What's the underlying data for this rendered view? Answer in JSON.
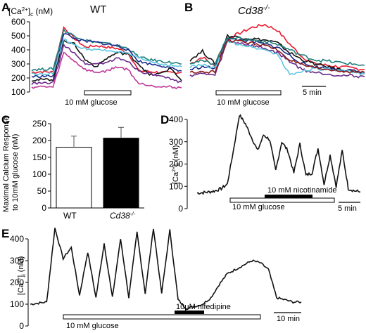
{
  "panels": {
    "A": {
      "letter": "A",
      "title": "WT",
      "ylabel": "[Ca2+]c (nM)",
      "ylabel_html": [
        "[Ca",
        "2+",
        "]",
        "c",
        " (nM)"
      ],
      "bar_label": "10 mM glucose"
    },
    "B": {
      "letter": "B",
      "title": "Cd38-/-",
      "title_parts": [
        "Cd38",
        "-/-"
      ],
      "bar_label": "10 mM glucose",
      "scalebar_label": "5 min"
    },
    "C": {
      "letter": "C",
      "ylabel_lines": [
        "Maximal Calcium Response",
        "to 10mM glucose (nM)"
      ],
      "x_labels": [
        "WT",
        "Cd38-/-"
      ]
    },
    "D": {
      "letter": "D",
      "ylabel": "[Ca2+]i (nM)",
      "bar_label": "10 mM glucose",
      "bar2_label": "10 mM nicotinamide",
      "scalebar_label": "5 min"
    },
    "E": {
      "letter": "E",
      "ylabel": "[Ca2+]i (nM)",
      "bar_label": "10 mM glucose",
      "bar2_label": "10μM nifedipine",
      "scalebar_label": "10 min"
    }
  },
  "colors": {
    "trace_red": "#e8192c",
    "trace_black": "#111111",
    "trace_navy": "#1b2a8c",
    "trace_teal": "#1e7e7a",
    "trace_purple": "#6a2a8a",
    "trace_magenta": "#c0399a",
    "trace_darkred": "#8b1a1a",
    "trace_cyan": "#5cc6e0",
    "trace_green": "#2e7d32"
  },
  "chart_data": [
    {
      "panel": "A",
      "type": "line",
      "title": "WT",
      "xlabel": "",
      "ylabel": "[Ca2+]c (nM)",
      "ylim": [
        100,
        600
      ],
      "yticks": [
        100,
        200,
        300,
        400,
        500,
        600
      ],
      "stimulus": "10 mM glucose",
      "series": [
        {
          "color": "#e8192c",
          "values": [
            240,
            245,
            242,
            560,
            480,
            420,
            430,
            420,
            410,
            380,
            250,
            245,
            240,
            238,
            240
          ]
        },
        {
          "color": "#1e7e7a",
          "values": [
            260,
            262,
            265,
            540,
            500,
            470,
            455,
            445,
            430,
            410,
            350,
            330,
            320,
            310,
            300
          ]
        },
        {
          "color": "#1b2a8c",
          "values": [
            210,
            212,
            215,
            520,
            480,
            460,
            455,
            440,
            430,
            400,
            320,
            300,
            290,
            270,
            250
          ]
        },
        {
          "color": "#111111",
          "values": [
            185,
            188,
            190,
            470,
            440,
            330,
            280,
            340,
            380,
            370,
            300,
            220,
            230,
            270,
            180
          ]
        },
        {
          "color": "#c0399a",
          "values": [
            135,
            138,
            135,
            380,
            320,
            260,
            240,
            250,
            280,
            260,
            160,
            150,
            140,
            135,
            130
          ]
        },
        {
          "color": "#6a2a8a",
          "values": [
            160,
            162,
            165,
            430,
            380,
            300,
            300,
            310,
            340,
            320,
            250,
            230,
            210,
            190,
            170
          ]
        },
        {
          "color": "#5cc6e0",
          "values": [
            230,
            232,
            230,
            480,
            430,
            410,
            400,
            395,
            390,
            370,
            340,
            320,
            300,
            290,
            280
          ]
        }
      ]
    },
    {
      "panel": "B",
      "type": "line",
      "title": "Cd38-/-",
      "xlabel": "",
      "ylabel": "",
      "ylim": [
        100,
        600
      ],
      "stimulus": "10 mM glucose",
      "scalebar": "5 min",
      "series": [
        {
          "color": "#e8192c",
          "values": [
            300,
            350,
            280,
            480,
            520,
            560,
            580,
            540,
            440,
            350,
            300,
            290,
            280,
            270,
            260
          ]
        },
        {
          "color": "#111111",
          "values": [
            330,
            390,
            300,
            500,
            490,
            480,
            470,
            450,
            380,
            330,
            300,
            280,
            260,
            250,
            230
          ]
        },
        {
          "color": "#1b2a8c",
          "values": [
            260,
            280,
            270,
            480,
            470,
            460,
            440,
            420,
            360,
            300,
            280,
            270,
            260,
            250,
            240
          ]
        },
        {
          "color": "#1e7e7a",
          "values": [
            310,
            320,
            300,
            490,
            480,
            470,
            460,
            440,
            400,
            360,
            330,
            320,
            310,
            300,
            290
          ]
        },
        {
          "color": "#6a2a8a",
          "values": [
            220,
            230,
            220,
            460,
            450,
            430,
            410,
            380,
            320,
            260,
            240,
            230,
            220,
            215,
            210
          ]
        },
        {
          "color": "#5cc6e0",
          "values": [
            280,
            290,
            270,
            460,
            440,
            420,
            400,
            370,
            220,
            250,
            270,
            260,
            250,
            240,
            230
          ]
        },
        {
          "color": "#8b1a1a",
          "values": [
            240,
            250,
            240,
            470,
            460,
            450,
            430,
            400,
            330,
            290,
            270,
            260,
            250,
            245,
            240
          ]
        }
      ]
    },
    {
      "panel": "C",
      "type": "bar",
      "categories": [
        "WT",
        "Cd38-/-"
      ],
      "values": [
        180,
        207
      ],
      "errors": [
        33,
        32
      ],
      "colors": [
        "#ffffff",
        "#000000"
      ],
      "ylabel": "Maximal Calcium Response to 10mM glucose (nM)",
      "ylim": [
        0,
        250
      ],
      "yticks": [
        0,
        50,
        100,
        150,
        200,
        250
      ]
    },
    {
      "panel": "D",
      "type": "line",
      "ylabel": "[Ca2+]i (nM)",
      "ylim": [
        0,
        400
      ],
      "yticks": [
        0,
        100,
        200,
        300,
        400
      ],
      "stimulus": "10 mM glucose",
      "second_stimulus": "10 mM nicotinamide",
      "scalebar": "5 min",
      "series": [
        {
          "color": "#111111",
          "values": [
            70,
            72,
            75,
            80,
            90,
            110,
            260,
            420,
            380,
            320,
            260,
            330,
            310,
            170,
            300,
            260,
            160,
            290,
            150,
            160,
            270,
            110,
            240,
            100,
            260,
            90,
            80,
            75
          ]
        }
      ]
    },
    {
      "panel": "E",
      "type": "line",
      "ylabel": "[Ca2+]i (nM)",
      "ylim": [
        0,
        400
      ],
      "yticks": [
        0,
        100,
        200,
        300,
        400
      ],
      "stimulus": "10 mM glucose",
      "second_stimulus": "10μM nifedipine",
      "scalebar": "10 min",
      "series": [
        {
          "color": "#111111",
          "values": [
            100,
            105,
            110,
            450,
            310,
            360,
            140,
            340,
            130,
            380,
            130,
            400,
            130,
            430,
            150,
            450,
            150,
            440,
            120,
            80,
            90,
            100,
            130,
            190,
            240,
            260,
            280,
            300,
            290,
            260,
            130,
            120,
            110,
            110
          ]
        }
      ]
    }
  ]
}
